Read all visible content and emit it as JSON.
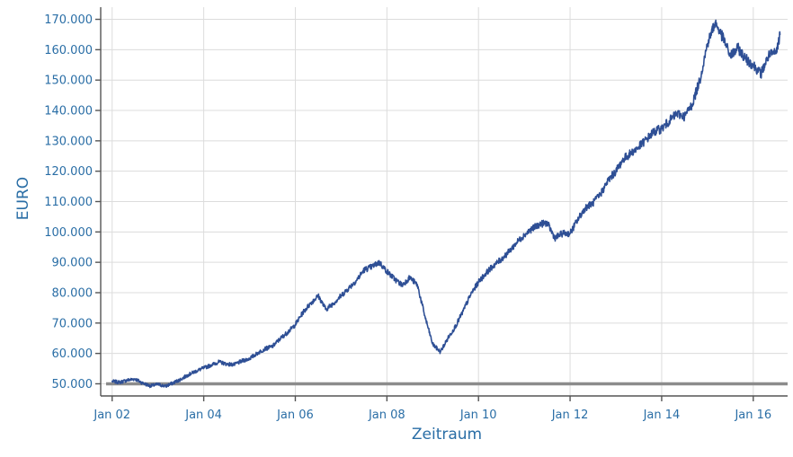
{
  "chart_data": {
    "type": "line",
    "title": "",
    "xlabel": "Zeitraum",
    "ylabel": "EURO",
    "x_ticks": [
      "Jan 02",
      "Jan 04",
      "Jan 06",
      "Jan 08",
      "Jan 10",
      "Jan 12",
      "Jan 14",
      "Jan 16"
    ],
    "y_ticks": [
      "50.000",
      "60.000",
      "70.000",
      "80.000",
      "90.000",
      "100.000",
      "110.000",
      "120.000",
      "130.000",
      "140.000",
      "150.000",
      "160.000",
      "170.000"
    ],
    "xlim": [
      "2001-10",
      "2016-10"
    ],
    "ylim": [
      46000,
      174000
    ],
    "grid": true,
    "baseline": {
      "value": 50000,
      "color": "#8c8c8c"
    },
    "series": [
      {
        "color": "#2e4f95",
        "x": [
          "2002-01",
          "2002-03",
          "2002-05",
          "2002-07",
          "2002-09",
          "2002-11",
          "2003-01",
          "2003-03",
          "2003-05",
          "2003-07",
          "2003-09",
          "2003-11",
          "2004-01",
          "2004-03",
          "2004-05",
          "2004-07",
          "2004-09",
          "2004-11",
          "2005-01",
          "2005-03",
          "2005-05",
          "2005-07",
          "2005-09",
          "2005-11",
          "2006-01",
          "2006-03",
          "2006-05",
          "2006-07",
          "2006-09",
          "2006-11",
          "2007-01",
          "2007-03",
          "2007-05",
          "2007-07",
          "2007-09",
          "2007-11",
          "2008-01",
          "2008-03",
          "2008-05",
          "2008-07",
          "2008-09",
          "2008-11",
          "2009-01",
          "2009-03",
          "2009-05",
          "2009-07",
          "2009-09",
          "2009-11",
          "2010-01",
          "2010-03",
          "2010-05",
          "2010-07",
          "2010-09",
          "2010-11",
          "2011-01",
          "2011-03",
          "2011-05",
          "2011-07",
          "2011-09",
          "2011-11",
          "2012-01",
          "2012-03",
          "2012-05",
          "2012-07",
          "2012-09",
          "2012-11",
          "2013-01",
          "2013-03",
          "2013-05",
          "2013-07",
          "2013-09",
          "2013-11",
          "2014-01",
          "2014-03",
          "2014-05",
          "2014-07",
          "2014-09",
          "2014-11",
          "2015-01",
          "2015-03",
          "2015-05",
          "2015-07",
          "2015-09",
          "2015-11",
          "2016-01",
          "2016-03",
          "2016-05",
          "2016-07",
          "2016-08"
        ],
        "values": [
          50800,
          50500,
          51200,
          51600,
          50200,
          49300,
          49800,
          49200,
          50300,
          51500,
          53000,
          54200,
          55200,
          56200,
          57200,
          56500,
          56300,
          57500,
          58300,
          60000,
          61500,
          62300,
          64800,
          67000,
          69500,
          73500,
          76500,
          79000,
          74500,
          76500,
          79000,
          81500,
          84000,
          87500,
          88500,
          90000,
          87000,
          84500,
          82500,
          85000,
          82500,
          72000,
          63000,
          60500,
          65000,
          69000,
          74000,
          79500,
          83500,
          86500,
          89000,
          91000,
          93500,
          96500,
          99000,
          101000,
          102500,
          103000,
          98000,
          99500,
          99500,
          104000,
          108000,
          109500,
          112500,
          117000,
          120000,
          124000,
          126000,
          128000,
          130500,
          133000,
          134000,
          136500,
          139000,
          138000,
          142000,
          150000,
          162000,
          169000,
          164000,
          158000,
          160500,
          157000,
          155000,
          152000,
          158000,
          159000,
          165000
        ]
      }
    ]
  }
}
